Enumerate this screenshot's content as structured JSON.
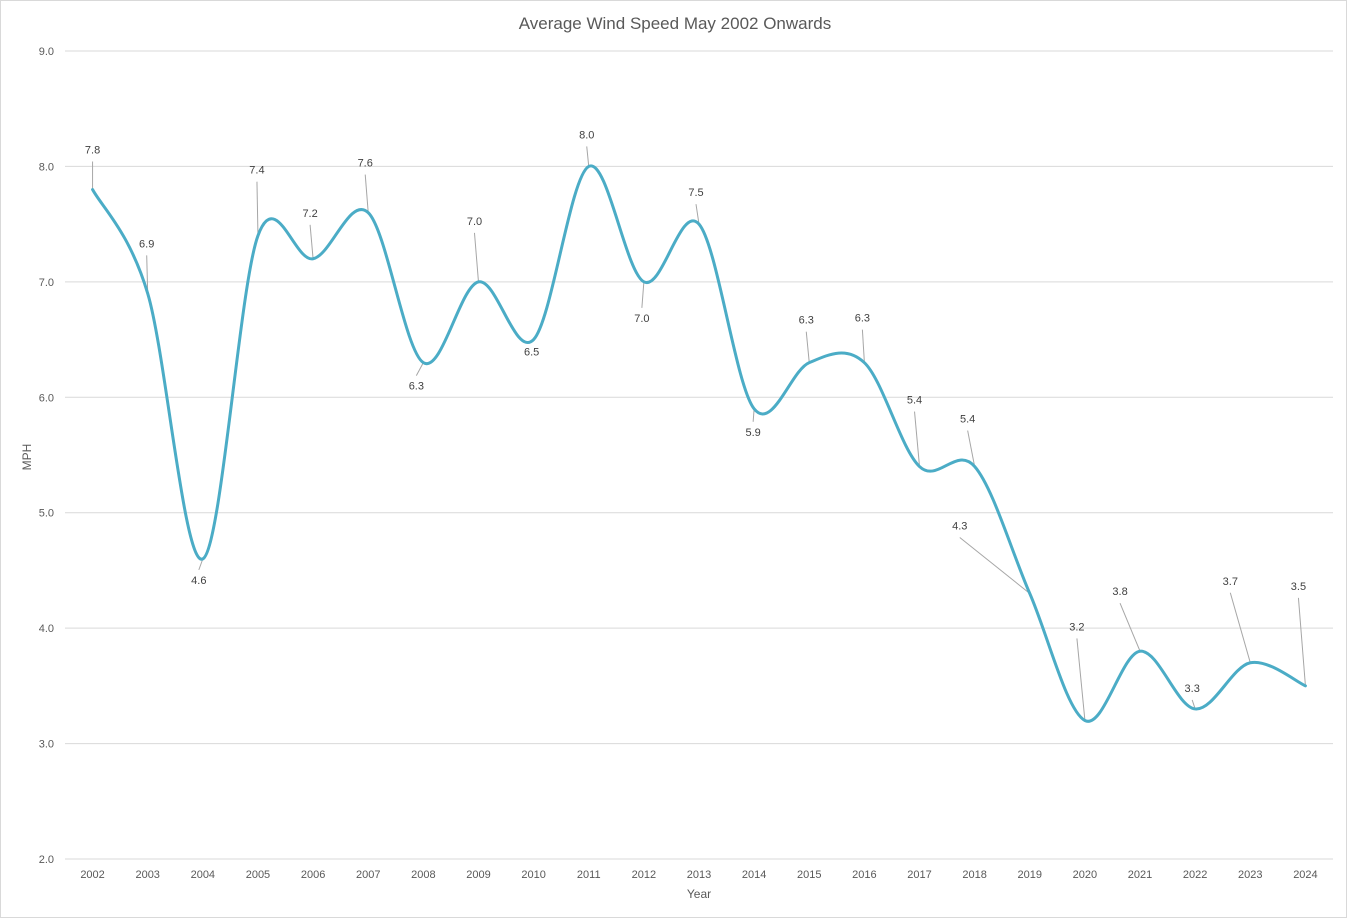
{
  "chart_data": {
    "type": "line",
    "title": "Average Wind Speed May 2002 Onwards",
    "xlabel": "Year",
    "ylabel": "MPH",
    "ylim": [
      2.0,
      9.0
    ],
    "y_ticks": [
      "2.0",
      "3.0",
      "4.0",
      "5.0",
      "6.0",
      "7.0",
      "8.0",
      "9.0"
    ],
    "categories": [
      "2002",
      "2003",
      "2004",
      "2005",
      "2006",
      "2007",
      "2008",
      "2009",
      "2010",
      "2011",
      "2012",
      "2013",
      "2014",
      "2015",
      "2016",
      "2017",
      "2018",
      "2019",
      "2020",
      "2021",
      "2022",
      "2023",
      "2024"
    ],
    "series": [
      {
        "values": [
          7.8,
          6.9,
          4.6,
          7.4,
          7.2,
          7.6,
          6.3,
          7.0,
          6.5,
          8.0,
          7.0,
          7.5,
          5.9,
          6.3,
          6.3,
          5.4,
          5.4,
          4.3,
          3.2,
          3.8,
          3.3,
          3.7,
          3.5
        ],
        "labels": [
          "7.8",
          "6.9",
          "4.6",
          "7.4",
          "7.2",
          "7.6",
          "6.3",
          "7.0",
          "6.5",
          "8.0",
          "7.0",
          "7.5",
          "5.9",
          "6.3",
          "6.3",
          "5.4",
          "5.4",
          "4.3",
          "3.2",
          "3.8",
          "3.3",
          "3.7",
          "3.5"
        ],
        "color": "#4bacc6"
      }
    ],
    "smooth": true,
    "grid": "horizontal",
    "legend": "none"
  }
}
